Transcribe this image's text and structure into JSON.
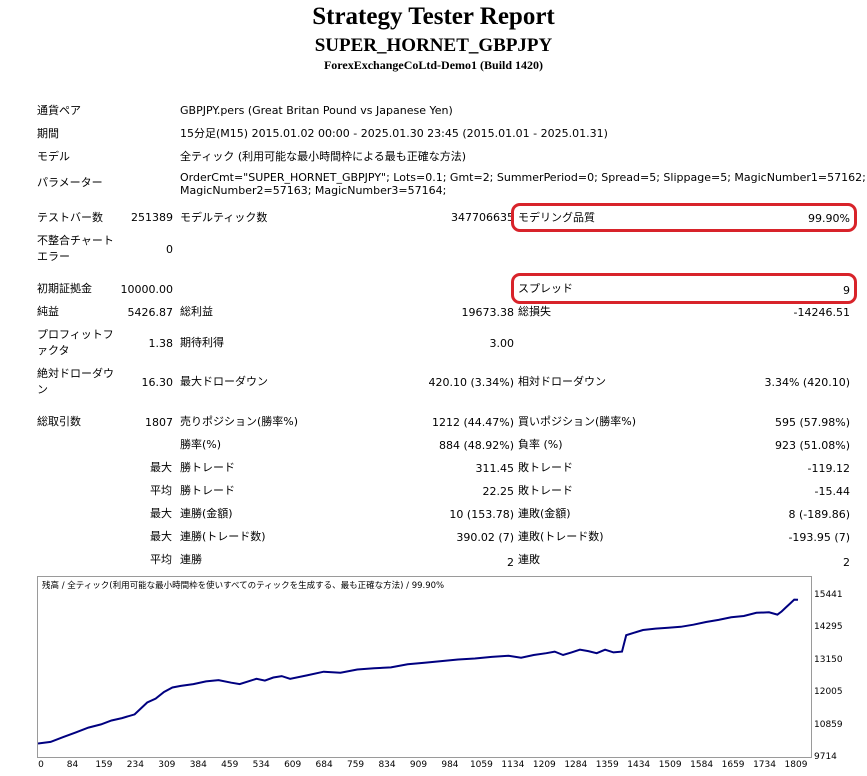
{
  "header": {
    "title": "Strategy Tester Report",
    "subtitle": "SUPER_HORNET_GBPJPY",
    "server": "ForexExchangeCoLtd-Demo1 (Build 1420)"
  },
  "settings": {
    "symbol_label": "通貨ペア",
    "symbol_value": "GBPJPY.pers (Great Britan Pound vs Japanese Yen)",
    "period_label": "期間",
    "period_value": "15分足(M15) 2015.01.02 00:00 - 2025.01.30 23:45 (2015.01.01 - 2025.01.31)",
    "model_label": "モデル",
    "model_value": "全ティック (利用可能な最小時間枠による最も正確な方法)",
    "params_label": "パラメーター",
    "params_line1": "OrderCmt=\"SUPER_HORNET_GBPJPY\"; Lots=0.1; Gmt=2; SummerPeriod=0; Spread=5; Slippage=5; MagicNumber1=57162;",
    "params_line2": "MagicNumber2=57163; MagicNumber3=57164;"
  },
  "quality": {
    "bars_label": "テストバー数",
    "bars_value": "251389",
    "ticks_label": "モデルティック数",
    "ticks_value": "347706635",
    "modeling_label": "モデリング品質",
    "modeling_value": "99.90%",
    "mismatch_label1": "不整合チャート",
    "mismatch_label2": "エラー",
    "mismatch_value": "0"
  },
  "results": {
    "deposit_label": "初期証拠金",
    "deposit_value": "10000.00",
    "spread_label": "スプレッド",
    "spread_value": "9",
    "net_label": "純益",
    "net_value": "5426.87",
    "gross_profit_label": "総利益",
    "gross_profit_value": "19673.38",
    "gross_loss_label": "総損失",
    "gross_loss_value": "-14246.51",
    "pf_label1": "プロフィットフ",
    "pf_label2": "ァクタ",
    "pf_value": "1.38",
    "expected_label": "期待利得",
    "expected_value": "3.00",
    "abs_dd_label1": "絶対ドローダウ",
    "abs_dd_label2": "ン",
    "abs_dd_value": "16.30",
    "max_dd_label": "最大ドローダウン",
    "max_dd_value": "420.10 (3.34%)",
    "rel_dd_label": "相対ドローダウン",
    "rel_dd_value": "3.34% (420.10)",
    "total_trades_label": "総取引数",
    "total_trades_value": "1807",
    "short_label": "売りポジション(勝率%)",
    "short_value": "1212 (44.47%)",
    "long_label": "買いポジション(勝率%)",
    "long_value": "595 (57.98%)",
    "win_label": "勝率(%)",
    "win_value": "884 (48.92%)",
    "loss_label": "負率 (%)",
    "loss_value": "923 (51.08%)",
    "max_word": "最大",
    "avg_word": "平均",
    "largest_win_label": "勝トレード",
    "largest_win_value": "311.45",
    "largest_loss_label": "敗トレード",
    "largest_loss_value": "-119.12",
    "avg_win_label": "勝トレード",
    "avg_win_value": "22.25",
    "avg_loss_label": "敗トレード",
    "avg_loss_value": "-15.44",
    "max_consec_wins_money_label": "連勝(金額)",
    "max_consec_wins_money_value": "10 (153.78)",
    "max_consec_losses_money_label": "連敗(金額)",
    "max_consec_losses_money_value": "8 (-189.86)",
    "max_consec_profit_label": "連勝(トレード数)",
    "max_consec_profit_value": "390.02 (7)",
    "max_consec_loss_label": "連敗(トレード数)",
    "max_consec_loss_value": "-193.95 (7)",
    "avg_consec_wins_label": "連勝",
    "avg_consec_wins_value": "2",
    "avg_consec_losses_label": "連敗",
    "avg_consec_losses_value": "2"
  },
  "chart_data": {
    "type": "line",
    "title": "残高 / 全ティック(利用可能な最小時間枠を使いすべてのティックを生成する、最も正確な方法) / 99.90%",
    "xlabel": "",
    "ylabel": "",
    "xlim": [
      0,
      1840
    ],
    "ylim": [
      9714,
      15700
    ],
    "x_ticks": [
      "0",
      "84",
      "159",
      "234",
      "309",
      "384",
      "459",
      "534",
      "609",
      "684",
      "759",
      "834",
      "909",
      "984",
      "1059",
      "1134",
      "1209",
      "1284",
      "1359",
      "1434",
      "1509",
      "1584",
      "1659",
      "1734",
      "1809"
    ],
    "y_ticks": [
      "15441",
      "14295",
      "13150",
      "12005",
      "10859",
      "9714"
    ],
    "series": [
      {
        "name": "",
        "color": "#000080",
        "x": [
          0,
          30,
          60,
          90,
          120,
          150,
          175,
          200,
          230,
          260,
          280,
          300,
          320,
          340,
          370,
          400,
          430,
          460,
          480,
          500,
          520,
          540,
          560,
          580,
          600,
          640,
          680,
          720,
          760,
          800,
          840,
          880,
          920,
          960,
          1000,
          1040,
          1080,
          1120,
          1150,
          1180,
          1210,
          1230,
          1250,
          1270,
          1290,
          1310,
          1330,
          1350,
          1370,
          1390,
          1400,
          1420,
          1440,
          1470,
          1500,
          1530,
          1560,
          1590,
          1620,
          1650,
          1680,
          1710,
          1740,
          1760,
          1770,
          1780,
          1790,
          1800,
          1809
        ],
        "values": [
          10000,
          10060,
          10240,
          10420,
          10600,
          10720,
          10870,
          10960,
          11100,
          11550,
          11700,
          11950,
          12120,
          12180,
          12250,
          12350,
          12400,
          12300,
          12250,
          12350,
          12450,
          12380,
          12500,
          12550,
          12450,
          12580,
          12720,
          12680,
          12800,
          12850,
          12880,
          13000,
          13060,
          13120,
          13180,
          13220,
          13280,
          13320,
          13250,
          13350,
          13420,
          13480,
          13350,
          13450,
          13550,
          13500,
          13420,
          13550,
          13450,
          13480,
          14100,
          14200,
          14300,
          14350,
          14380,
          14420,
          14500,
          14600,
          14680,
          14780,
          14830,
          14950,
          14970,
          14880,
          15000,
          15150,
          15300,
          15450,
          15441
        ]
      }
    ]
  }
}
